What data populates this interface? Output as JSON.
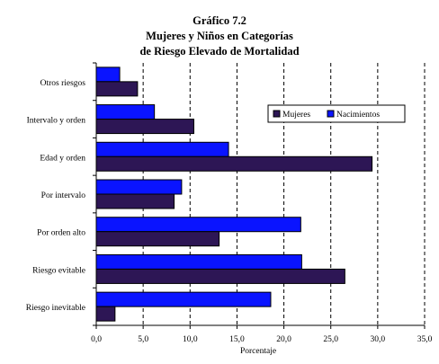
{
  "chart_data": {
    "type": "bar",
    "orientation": "horizontal",
    "title": [
      "Gráfico 7.2",
      "Mujeres y Niños en Categorías",
      "de Riesgo Elevado de Mortalidad"
    ],
    "xlabel": "Porcentaje",
    "ylabel": "",
    "xlim": [
      0,
      35
    ],
    "x_ticks": [
      "0,0",
      "5,0",
      "10,0",
      "15,0",
      "20,0",
      "25,0",
      "30,0",
      "35,0"
    ],
    "grid": "vertical dashed",
    "legend_position": "right",
    "categories": [
      "Otros riesgos",
      "Intervalo y orden",
      "Edad y orden",
      "Por intervalo",
      "Por orden alto",
      "Riesgo evitable",
      "Riesgo inevitable"
    ],
    "series": [
      {
        "name": "Mujeres",
        "color": "#2d1655",
        "values": [
          4.4,
          10.4,
          29.4,
          8.3,
          13.1,
          26.5,
          2.0
        ]
      },
      {
        "name": "Nacimientos",
        "color": "#0a14ff",
        "values": [
          2.5,
          6.2,
          14.1,
          9.1,
          21.8,
          21.9,
          18.6
        ]
      }
    ]
  }
}
